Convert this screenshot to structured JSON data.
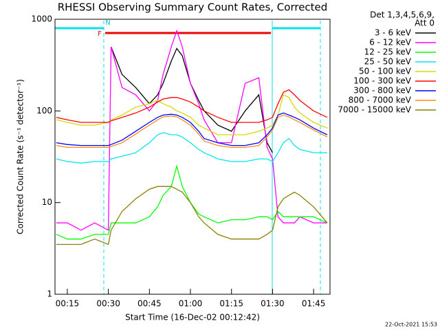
{
  "chart_data": {
    "type": "line",
    "title": "RHESSI Observing Summary Count Rates, Corrected",
    "x_label": "Start Time (16-Dec-02 00:12:42)",
    "y_label": "Corrected Count Rate (s⁻¹ detector⁻¹)",
    "legend_title": [
      "Det 1,3,4,5,6,9,",
      "Att 0"
    ],
    "timestamp": "22-Oct-2021 15:53",
    "flag_labels": [
      "F",
      "N"
    ],
    "log_y": true,
    "legend_position": "outside-right",
    "xlim": [
      10.5,
      111
    ],
    "ylim": [
      1,
      1000
    ],
    "xticks": [
      {
        "value": 15,
        "label": "00:15"
      },
      {
        "value": 30,
        "label": "00:30"
      },
      {
        "value": 45,
        "label": "00:45"
      },
      {
        "value": 60,
        "label": "01:00"
      },
      {
        "value": 75,
        "label": "01:15"
      },
      {
        "value": 90,
        "label": "01:30"
      },
      {
        "value": 105,
        "label": "01:45"
      }
    ],
    "yticks": [
      1,
      10,
      100,
      1000
    ],
    "x": [
      11,
      15,
      20,
      25,
      30,
      31,
      35,
      40,
      45,
      48,
      50,
      53,
      55,
      57,
      60,
      63,
      65,
      70,
      75,
      80,
      85,
      88,
      90,
      92,
      94,
      96,
      98,
      100,
      105,
      110
    ],
    "series": [
      {
        "name": "3 - 6 keV",
        "color": "#000000",
        "values": [
          null,
          null,
          null,
          null,
          null,
          500,
          250,
          180,
          120,
          150,
          200,
          350,
          480,
          400,
          200,
          130,
          100,
          70,
          60,
          100,
          150,
          45,
          35,
          null,
          null,
          null,
          null,
          null,
          null,
          null
        ]
      },
      {
        "name": "6 - 12 keV",
        "color": "#ff00ff",
        "values": [
          6,
          6,
          5,
          6,
          5,
          500,
          180,
          150,
          100,
          130,
          250,
          500,
          750,
          500,
          200,
          120,
          80,
          45,
          45,
          200,
          230,
          40,
          30,
          7,
          6,
          6,
          6,
          7,
          6,
          6
        ]
      },
      {
        "name": "12 - 25 keV",
        "color": "#00ff00",
        "values": [
          4.5,
          4,
          4,
          4.5,
          4.5,
          6,
          6,
          6,
          7,
          9,
          12,
          15,
          25,
          15,
          10,
          7.5,
          7,
          6,
          6.5,
          6.5,
          7,
          7,
          6.5,
          8,
          7,
          7,
          7,
          7,
          7,
          6
        ]
      },
      {
        "name": "25 - 50 keV",
        "color": "#00e5ee",
        "values": [
          30,
          28,
          27,
          28,
          28,
          30,
          32,
          35,
          45,
          55,
          58,
          55,
          55,
          52,
          45,
          38,
          35,
          30,
          28,
          28,
          30,
          30,
          28,
          35,
          45,
          50,
          42,
          38,
          35,
          35
        ]
      },
      {
        "name": "50 - 100 keV",
        "color": "#d8d800",
        "values": [
          80,
          75,
          70,
          70,
          75,
          80,
          90,
          110,
          120,
          130,
          120,
          110,
          100,
          95,
          85,
          70,
          65,
          55,
          55,
          55,
          60,
          65,
          70,
          90,
          150,
          140,
          110,
          95,
          75,
          65
        ]
      },
      {
        "name": "100 - 300 keV",
        "color": "#ff0000",
        "values": [
          85,
          80,
          75,
          75,
          75,
          78,
          85,
          95,
          110,
          125,
          135,
          140,
          140,
          135,
          125,
          110,
          100,
          85,
          75,
          75,
          75,
          80,
          85,
          120,
          160,
          170,
          150,
          130,
          100,
          85
        ]
      },
      {
        "name": "300 - 800 keV",
        "color": "#0000ff",
        "values": [
          45,
          43,
          42,
          42,
          42,
          43,
          48,
          60,
          75,
          85,
          90,
          92,
          90,
          85,
          75,
          60,
          50,
          45,
          42,
          42,
          45,
          55,
          65,
          90,
          95,
          90,
          85,
          80,
          65,
          55
        ]
      },
      {
        "name": "800 - 7000 keV",
        "color": "#ff8c1a",
        "values": [
          42,
          40,
          40,
          40,
          40,
          41,
          45,
          56,
          70,
          80,
          86,
          88,
          86,
          80,
          70,
          56,
          47,
          42,
          40,
          40,
          42,
          52,
          62,
          85,
          90,
          86,
          80,
          75,
          62,
          52
        ]
      },
      {
        "name": "7000 - 15000 keV",
        "color": "#8b8000",
        "values": [
          3.5,
          3.5,
          3.5,
          4,
          3.5,
          5,
          8,
          11,
          14,
          15,
          15,
          15,
          14,
          13,
          10,
          7,
          6,
          4.5,
          4,
          4,
          4,
          4.5,
          5,
          9,
          11,
          12,
          13,
          12,
          9,
          6
        ]
      }
    ]
  }
}
